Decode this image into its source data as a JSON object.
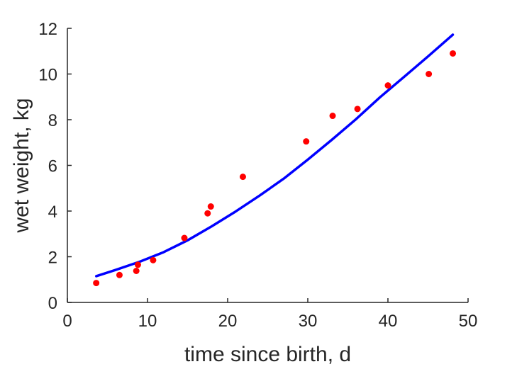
{
  "chart_data": {
    "type": "scatter",
    "xlabel": "time since birth, d",
    "ylabel": "wet weight, kg",
    "xlim": [
      0,
      50
    ],
    "ylim": [
      0,
      12
    ],
    "x_ticks": [
      "0",
      "10",
      "20",
      "30",
      "40",
      "50"
    ],
    "y_ticks": [
      "0",
      "2",
      "4",
      "6",
      "8",
      "10",
      "12"
    ],
    "grid": false,
    "legend": "none",
    "series": [
      {
        "kind": "points",
        "color": "#ff0000",
        "points": [
          {
            "x": 3.6,
            "y": 0.85
          },
          {
            "x": 6.5,
            "y": 1.2
          },
          {
            "x": 8.6,
            "y": 1.38
          },
          {
            "x": 8.8,
            "y": 1.65
          },
          {
            "x": 10.7,
            "y": 1.85
          },
          {
            "x": 14.6,
            "y": 2.82
          },
          {
            "x": 17.5,
            "y": 3.9
          },
          {
            "x": 17.9,
            "y": 4.2
          },
          {
            "x": 21.9,
            "y": 5.5
          },
          {
            "x": 29.8,
            "y": 7.05
          },
          {
            "x": 33.1,
            "y": 8.17
          },
          {
            "x": 36.2,
            "y": 8.47
          },
          {
            "x": 40.0,
            "y": 9.5
          },
          {
            "x": 45.1,
            "y": 10.0
          },
          {
            "x": 48.1,
            "y": 10.9
          }
        ]
      },
      {
        "kind": "curve",
        "color": "#0000ff",
        "points": [
          {
            "x": 3.6,
            "y": 1.15
          },
          {
            "x": 6,
            "y": 1.42
          },
          {
            "x": 9,
            "y": 1.78
          },
          {
            "x": 12,
            "y": 2.2
          },
          {
            "x": 15,
            "y": 2.72
          },
          {
            "x": 18,
            "y": 3.33
          },
          {
            "x": 21,
            "y": 3.98
          },
          {
            "x": 24,
            "y": 4.68
          },
          {
            "x": 27,
            "y": 5.42
          },
          {
            "x": 30,
            "y": 6.25
          },
          {
            "x": 33,
            "y": 7.12
          },
          {
            "x": 36,
            "y": 8.02
          },
          {
            "x": 39,
            "y": 8.98
          },
          {
            "x": 42,
            "y": 9.87
          },
          {
            "x": 45,
            "y": 10.77
          },
          {
            "x": 48.1,
            "y": 11.72
          }
        ]
      }
    ]
  }
}
